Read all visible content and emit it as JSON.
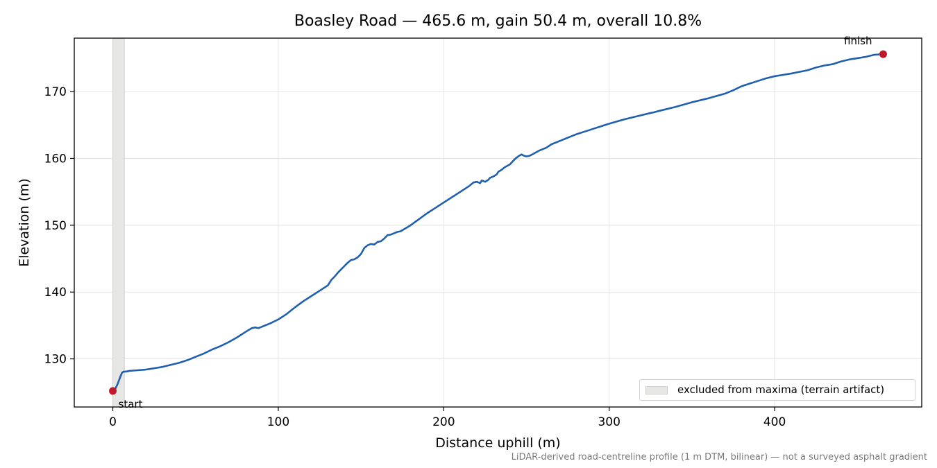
{
  "chart_data": {
    "type": "line",
    "title": "Boasley Road — 465.6 m, gain 50.4 m, overall 10.8%",
    "xlabel": "Distance uphill (m)",
    "ylabel": "Elevation (m)",
    "xlim": [
      -23.3,
      488.9
    ],
    "ylim": [
      122.8,
      178.0
    ],
    "xticks": [
      0,
      100,
      200,
      300,
      400
    ],
    "yticks": [
      130,
      140,
      150,
      160,
      170
    ],
    "grid": true,
    "series": [
      {
        "color": "#1f5fb0",
        "x": [
          0,
          1.5,
          3,
          4.5,
          5.5,
          6.5,
          8,
          10,
          15,
          20,
          25,
          30,
          35,
          40,
          45,
          50,
          55,
          60,
          65,
          70,
          75,
          80,
          82,
          84,
          86,
          88,
          90,
          95,
          100,
          105,
          110,
          115,
          120,
          125,
          130,
          132,
          134,
          136,
          138,
          140,
          142,
          144,
          146,
          148,
          150,
          152,
          154,
          156,
          158,
          160,
          162,
          164,
          166,
          168,
          170,
          172,
          174,
          176,
          178,
          180,
          185,
          190,
          195,
          200,
          205,
          210,
          215,
          218,
          220,
          222,
          223,
          225,
          227,
          228,
          230,
          232,
          233,
          235,
          237,
          240,
          243,
          245,
          247,
          248.5,
          250,
          252,
          255,
          258,
          262,
          265,
          270,
          275,
          280,
          285,
          290,
          295,
          300,
          310,
          320,
          325,
          327,
          330,
          340,
          350,
          360,
          370,
          375,
          380,
          385,
          390,
          395,
          400,
          405,
          410,
          420,
          425,
          430,
          435,
          440,
          445,
          450,
          455,
          460,
          465.6
        ],
        "y": [
          125.2,
          125.5,
          126.3,
          127.3,
          127.9,
          128.1,
          128.1,
          128.2,
          128.3,
          128.4,
          128.6,
          128.8,
          129.1,
          129.4,
          129.8,
          130.3,
          130.8,
          131.4,
          131.9,
          132.5,
          133.2,
          134.0,
          134.3,
          134.6,
          134.7,
          134.6,
          134.8,
          135.3,
          135.9,
          136.7,
          137.7,
          138.6,
          139.4,
          140.2,
          141.0,
          141.8,
          142.3,
          142.9,
          143.4,
          143.9,
          144.4,
          144.8,
          144.9,
          145.2,
          145.7,
          146.6,
          147.0,
          147.2,
          147.1,
          147.5,
          147.6,
          148.0,
          148.5,
          148.6,
          148.8,
          149.0,
          149.1,
          149.4,
          149.7,
          150.0,
          150.9,
          151.8,
          152.6,
          153.4,
          154.2,
          155.0,
          155.8,
          156.4,
          156.5,
          156.3,
          156.7,
          156.5,
          156.8,
          157.1,
          157.3,
          157.6,
          158.0,
          158.3,
          158.7,
          159.1,
          159.9,
          160.3,
          160.6,
          160.4,
          160.3,
          160.4,
          160.8,
          161.2,
          161.6,
          162.1,
          162.6,
          163.1,
          163.6,
          164.0,
          164.4,
          164.8,
          165.2,
          165.9,
          166.5,
          166.8,
          166.9,
          167.1,
          167.7,
          168.4,
          169.0,
          169.7,
          170.2,
          170.8,
          171.2,
          171.6,
          172.0,
          172.3,
          172.5,
          172.7,
          173.2,
          173.6,
          173.9,
          174.1,
          174.5,
          174.8,
          175.0,
          175.2,
          175.5,
          175.6
        ]
      }
    ],
    "excluded_band": {
      "x": [
        0,
        7
      ],
      "label": "excluded from maxima (terrain artifact)",
      "color": "#e6e6e5"
    },
    "markers": [
      {
        "label": "start",
        "x": 0,
        "y": 125.2,
        "color": "#c0192b"
      },
      {
        "label": "finish",
        "x": 465.6,
        "y": 175.6,
        "color": "#c0192b"
      }
    ],
    "legend_position": "lower-right",
    "footnote": "LiDAR-derived road-centreline profile (1 m DTM, bilinear) — not a surveyed asphalt gradient"
  }
}
